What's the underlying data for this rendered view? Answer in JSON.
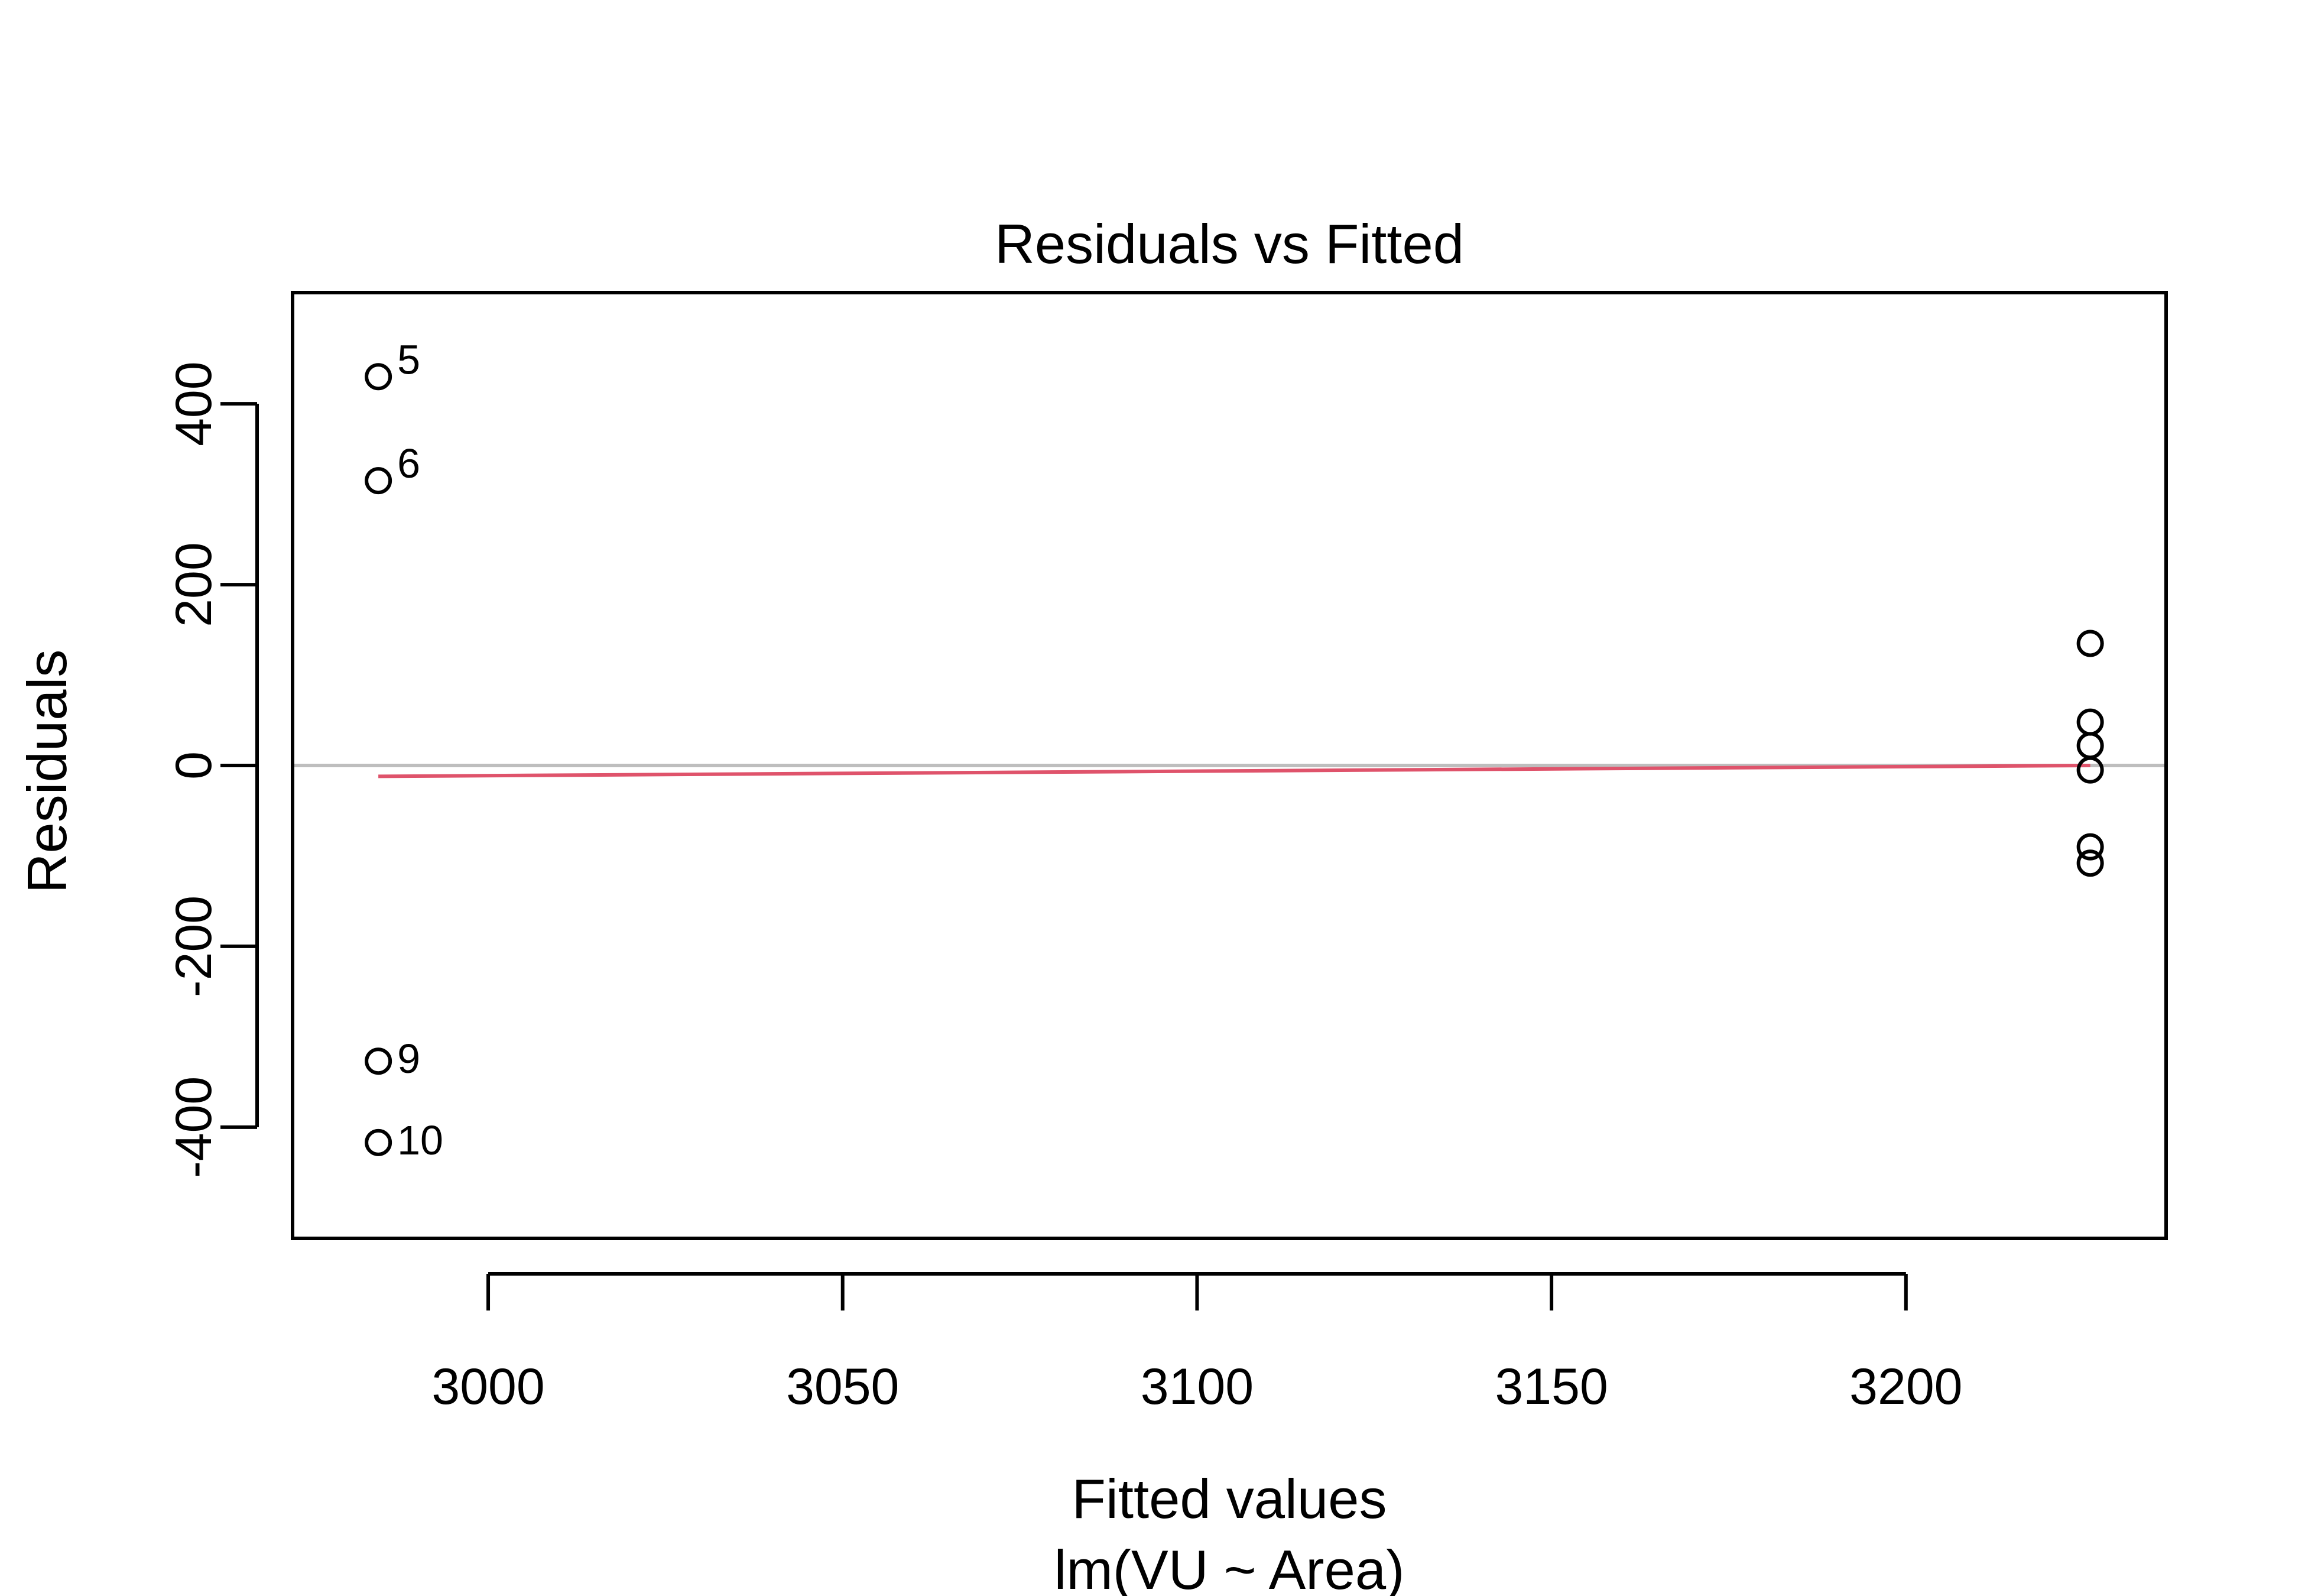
{
  "chart_data": {
    "type": "scatter",
    "title": "Residuals vs Fitted",
    "xlabel": "Fitted values",
    "xsublabel": "lm(VU ~ Area)",
    "ylabel": "Residuals",
    "xlim": [
      2972.4,
      3236.7
    ],
    "ylim": [
      -523,
      523
    ],
    "xticks": [
      3000,
      3050,
      3100,
      3150,
      3200
    ],
    "xtick_labels": [
      "3000",
      "3050",
      "3100",
      "3150",
      "3200"
    ],
    "yticks": [
      -400,
      -200,
      0,
      200,
      400
    ],
    "ytick_labels": [
      "-400",
      "-200",
      "0",
      "200",
      "400"
    ],
    "points": [
      {
        "x": 2984.5,
        "y": 430,
        "label": "5"
      },
      {
        "x": 2984.5,
        "y": 315,
        "label": "6"
      },
      {
        "x": 2984.5,
        "y": -327,
        "label": "9"
      },
      {
        "x": 2984.5,
        "y": -417,
        "label": "10"
      },
      {
        "x": 3226,
        "y": 135,
        "label": ""
      },
      {
        "x": 3226,
        "y": 48,
        "label": ""
      },
      {
        "x": 3226,
        "y": 22,
        "label": ""
      },
      {
        "x": 3226,
        "y": -5,
        "label": ""
      },
      {
        "x": 3226,
        "y": -90,
        "label": ""
      },
      {
        "x": 3226,
        "y": -108,
        "label": ""
      }
    ],
    "smooth_line": [
      {
        "x": 2984.5,
        "y": -12
      },
      {
        "x": 3226,
        "y": 0
      }
    ],
    "reference_line_y": 0,
    "colors": {
      "points": "#000000",
      "smooth": "#DF536B",
      "reference": "#BEBEBE",
      "axes": "#000000"
    }
  }
}
